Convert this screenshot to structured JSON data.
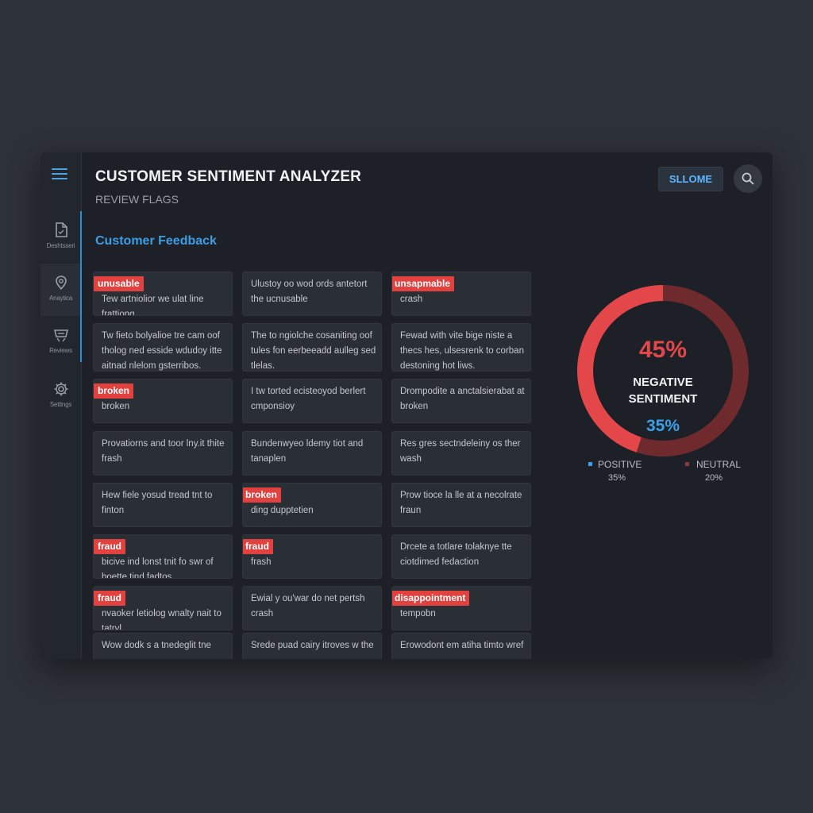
{
  "app": {
    "title": "CUSTOMER SENTIMENT ANALYZER",
    "subtitle": "REVIEW FLAGS"
  },
  "header": {
    "user_button": "SLLOME"
  },
  "sidebar": {
    "items": [
      {
        "label": "Deshtsseri",
        "icon": "document-icon"
      },
      {
        "label": "Anaytica",
        "icon": "location-pin-icon"
      },
      {
        "label": "Reviews",
        "icon": "reviews-icon"
      },
      {
        "label": "Settings",
        "icon": "gear-icon"
      }
    ]
  },
  "feedback": {
    "title": "Customer Feedback",
    "cards": [
      {
        "flag": "unusable",
        "text": "Tew artniolior we ulat line frattiong"
      },
      {
        "flag": "",
        "text": "Ulustoy oo wod ords antetort the ucnusable"
      },
      {
        "flag": "unsapmable",
        "text": "crash"
      },
      {
        "flag": "",
        "text": "Tw fieto bolyalioe tre cam oof tholog ned esside wdudoy itte aitnad nlelom gsterribos."
      },
      {
        "flag": "",
        "text": "The to ngiolche cosaniting oof tules fon eerbeeadd aulleg sed tlelas."
      },
      {
        "flag": "",
        "text": "Fewad with vite bige niste a thecs hes, ulsesrenk to corban destoning hot liws."
      },
      {
        "flag": "broken",
        "text": "broken"
      },
      {
        "flag": "",
        "text": "I tw torted ecisteoyod berlert cmponsioy"
      },
      {
        "flag": "",
        "text": "Drompodite a anctalsierabat at broken"
      },
      {
        "flag": "",
        "text": "Provatiorns and toor lny.it thite frash"
      },
      {
        "flag": "",
        "text": "Bundenwyeo ldemy tiot and tanaplen"
      },
      {
        "flag": "",
        "text": "Res gres sectndeleiny os ther wash"
      },
      {
        "flag": "",
        "text": "Hew fiele yosud tread tnt to finton"
      },
      {
        "flag": "broken",
        "text": "ding dupptetien"
      },
      {
        "flag": "",
        "text": "Prow tioce la lle at a necolrate fraun"
      },
      {
        "flag": "fraud",
        "text": "bicive ind lonst tnit fo swr of boette tind fadtos."
      },
      {
        "flag": "fraud",
        "text": "frash"
      },
      {
        "flag": "",
        "text": "Drcete a totlare tolaknye tte ciotdimed fedaction"
      },
      {
        "flag": "fraud",
        "text": "nvaoker letiolog wnalty nait to tatryl."
      },
      {
        "flag": "",
        "text": "Ewial y ou'war do net pertsh crash"
      },
      {
        "flag": "disappointment",
        "text": "tempobn"
      },
      {
        "flag": "",
        "text": "Wow dodk s a tnedeglit tne"
      },
      {
        "flag": "",
        "text": "Srede puad cairy itroves w the"
      },
      {
        "flag": "",
        "text": "Erowodont em atiha timto wref"
      }
    ]
  },
  "sentiment": {
    "center_value": "45%",
    "center_label_line1": "NEGATIVE",
    "center_label_line2": "SENTIMENT",
    "secondary_value": "35%",
    "legend": [
      {
        "label": "POSITIVE",
        "value": "35%",
        "color": "#3aa0ea"
      },
      {
        "label": "NEUTRAL",
        "value": "20%",
        "color": "#8a3a3e"
      }
    ]
  },
  "colors": {
    "accent": "#3d9ee6",
    "flag": "#e2423f",
    "negative": "#e4474a",
    "neutral_ring": "#6f2a2e",
    "background": "#1d2026"
  }
}
